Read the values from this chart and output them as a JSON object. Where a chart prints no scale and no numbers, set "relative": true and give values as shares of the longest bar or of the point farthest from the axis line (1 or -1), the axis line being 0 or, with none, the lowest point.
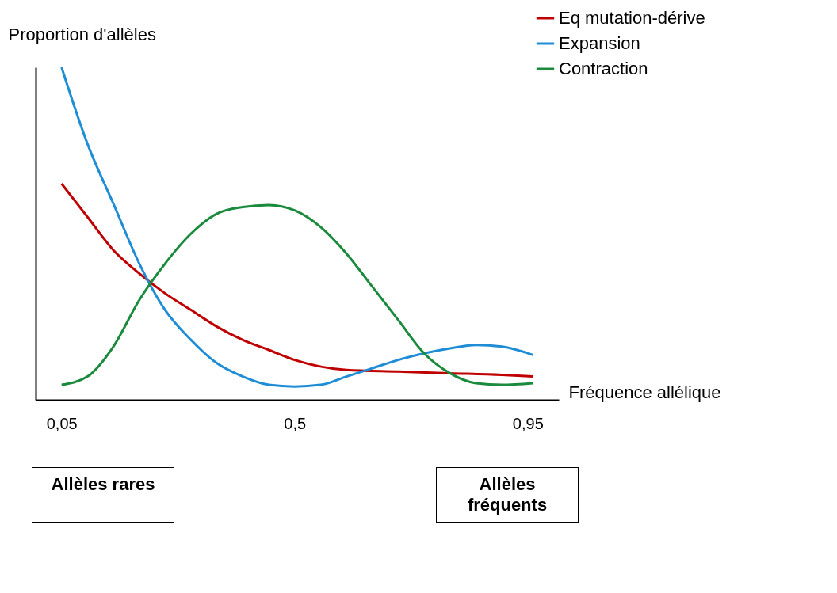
{
  "chart_data": {
    "type": "line",
    "relative": true,
    "xlabel": "Fréquence allélique",
    "ylabel": "Proportion d'allèles",
    "xlim": [
      0,
      1.01
    ],
    "xticks": [
      {
        "value": 0.05,
        "label": "0,05"
      },
      {
        "value": 0.5,
        "label": "0,5"
      },
      {
        "value": 0.95,
        "label": "0,95"
      }
    ],
    "grid": false,
    "legend": "top right",
    "marker": "none",
    "line_style": "solid",
    "series": [
      {
        "name": "Eq mutation-dérive",
        "color": "#c00000",
        "x": [
          0.05,
          0.1,
          0.15,
          0.2,
          0.25,
          0.3,
          0.35,
          0.4,
          0.45,
          0.5,
          0.6,
          0.7,
          0.8,
          0.9,
          0.96
        ],
        "values": [
          0.65,
          0.55,
          0.45,
          0.38,
          0.32,
          0.27,
          0.22,
          0.18,
          0.15,
          0.12,
          0.09,
          0.085,
          0.08,
          0.075,
          0.07
        ]
      },
      {
        "name": "Expansion",
        "color": "#1f8dd6",
        "x": [
          0.05,
          0.1,
          0.15,
          0.2,
          0.25,
          0.3,
          0.35,
          0.4,
          0.45,
          0.5,
          0.55,
          0.6,
          0.65,
          0.7,
          0.75,
          0.8,
          0.85,
          0.9,
          0.96
        ],
        "values": [
          1.0,
          0.77,
          0.59,
          0.41,
          0.27,
          0.18,
          0.11,
          0.07,
          0.045,
          0.04,
          0.045,
          0.07,
          0.095,
          0.12,
          0.14,
          0.155,
          0.165,
          0.16,
          0.135
        ]
      },
      {
        "name": "Contraction",
        "color": "#1a8a3c",
        "x": [
          0.05,
          0.1,
          0.15,
          0.2,
          0.25,
          0.3,
          0.35,
          0.4,
          0.45,
          0.5,
          0.55,
          0.6,
          0.65,
          0.7,
          0.75,
          0.8,
          0.85,
          0.9,
          0.96
        ],
        "values": [
          0.045,
          0.07,
          0.16,
          0.3,
          0.41,
          0.5,
          0.56,
          0.58,
          0.586,
          0.57,
          0.52,
          0.44,
          0.34,
          0.24,
          0.14,
          0.08,
          0.05,
          0.045,
          0.05
        ]
      }
    ],
    "annotations": [
      "Allèles rares",
      "Allèles fréquents"
    ]
  }
}
